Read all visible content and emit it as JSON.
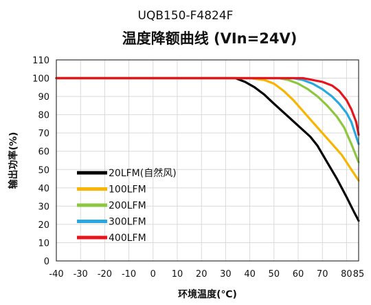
{
  "header": {
    "model": "UQB150-F4824F",
    "title": "温度降额曲线 (VIn=24V)"
  },
  "chart_data": {
    "type": "line",
    "title": "温度降额曲线 (VIn=24V)",
    "xlabel": "环境温度(℃)",
    "ylabel": "输出功率(%)",
    "xlim": [
      -40,
      85
    ],
    "ylim": [
      0,
      110
    ],
    "xticks": [
      -40,
      -30,
      -20,
      -10,
      0,
      10,
      20,
      30,
      40,
      50,
      60,
      70,
      80,
      85
    ],
    "xtick_labels": [
      "-40",
      "-30",
      "-20",
      "-10",
      "0",
      "10",
      "20",
      "30",
      "40",
      "50",
      "60",
      "70",
      "80",
      "85"
    ],
    "yticks": [
      0,
      10,
      20,
      30,
      40,
      50,
      60,
      70,
      80,
      90,
      100,
      110
    ],
    "ytick_labels": [
      "0",
      "10",
      "20",
      "30",
      "40",
      "50",
      "60",
      "70",
      "80",
      "90",
      "100",
      "110"
    ],
    "grid": true,
    "legend_position": "lower-left",
    "series": [
      {
        "name": "20LFM(自然风)",
        "color": "#000000",
        "points": [
          [
            -40,
            100
          ],
          [
            30,
            100
          ],
          [
            34,
            100
          ],
          [
            38,
            98
          ],
          [
            42,
            95
          ],
          [
            46,
            91
          ],
          [
            50,
            86
          ],
          [
            55,
            80
          ],
          [
            60,
            74
          ],
          [
            65,
            68
          ],
          [
            68,
            63
          ],
          [
            72,
            54
          ],
          [
            76,
            45
          ],
          [
            80,
            35
          ],
          [
            83,
            27
          ],
          [
            85,
            22
          ]
        ]
      },
      {
        "name": "100LFM",
        "color": "#F7B500",
        "points": [
          [
            -40,
            100
          ],
          [
            40,
            100
          ],
          [
            46,
            99
          ],
          [
            50,
            97
          ],
          [
            54,
            93
          ],
          [
            58,
            88
          ],
          [
            62,
            82
          ],
          [
            66,
            76
          ],
          [
            70,
            70
          ],
          [
            74,
            64
          ],
          [
            78,
            58
          ],
          [
            82,
            50
          ],
          [
            85,
            44
          ]
        ]
      },
      {
        "name": "200LFM",
        "color": "#8DC63F",
        "points": [
          [
            -40,
            100
          ],
          [
            45,
            100
          ],
          [
            52,
            100
          ],
          [
            56,
            99
          ],
          [
            60,
            97
          ],
          [
            64,
            94
          ],
          [
            68,
            90
          ],
          [
            72,
            85
          ],
          [
            76,
            79
          ],
          [
            79,
            73
          ],
          [
            82,
            64
          ],
          [
            85,
            54
          ]
        ]
      },
      {
        "name": "300LFM",
        "color": "#29A8E0",
        "points": [
          [
            -40,
            100
          ],
          [
            50,
            100
          ],
          [
            58,
            100
          ],
          [
            62,
            99
          ],
          [
            66,
            97
          ],
          [
            70,
            94
          ],
          [
            74,
            90
          ],
          [
            77,
            86
          ],
          [
            80,
            81
          ],
          [
            82,
            76
          ],
          [
            84,
            68
          ],
          [
            85,
            64
          ]
        ]
      },
      {
        "name": "400LFM",
        "color": "#E8141C",
        "points": [
          [
            -40,
            100
          ],
          [
            55,
            100
          ],
          [
            62,
            100
          ],
          [
            66,
            99
          ],
          [
            70,
            98
          ],
          [
            74,
            96
          ],
          [
            77,
            93
          ],
          [
            80,
            88
          ],
          [
            82,
            83
          ],
          [
            84,
            76
          ],
          [
            85,
            69
          ]
        ]
      }
    ]
  }
}
